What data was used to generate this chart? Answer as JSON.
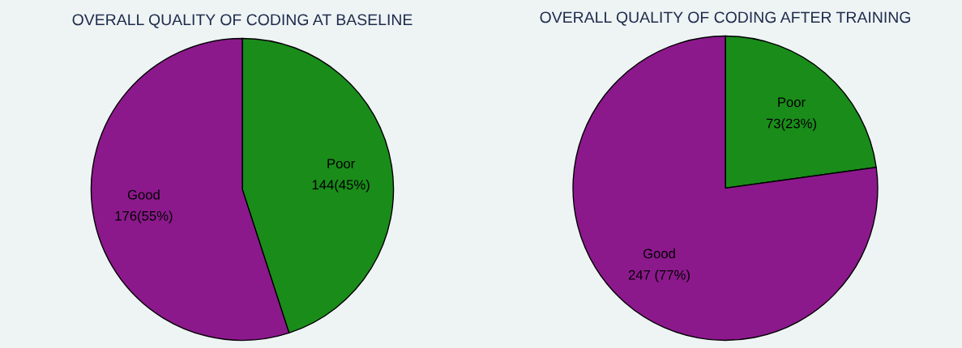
{
  "chart_data": [
    {
      "type": "pie",
      "title": "OVERALL QUALITY OF CODING AT BASELINE",
      "categories": [
        "Poor",
        "Good"
      ],
      "values": [
        144,
        176
      ],
      "colors": [
        "#1a8c1a",
        "#8c198c"
      ],
      "value_labels": [
        "144(45%)",
        "176(55%)"
      ]
    },
    {
      "type": "pie",
      "title": "OVERALL QUALITY OF CODING AFTER TRAINING",
      "categories": [
        "Poor",
        "Good"
      ],
      "values": [
        73,
        247
      ],
      "colors": [
        "#1a8c1a",
        "#8c198c"
      ],
      "value_labels": [
        "73(23%)",
        "247 (77%)"
      ]
    }
  ]
}
